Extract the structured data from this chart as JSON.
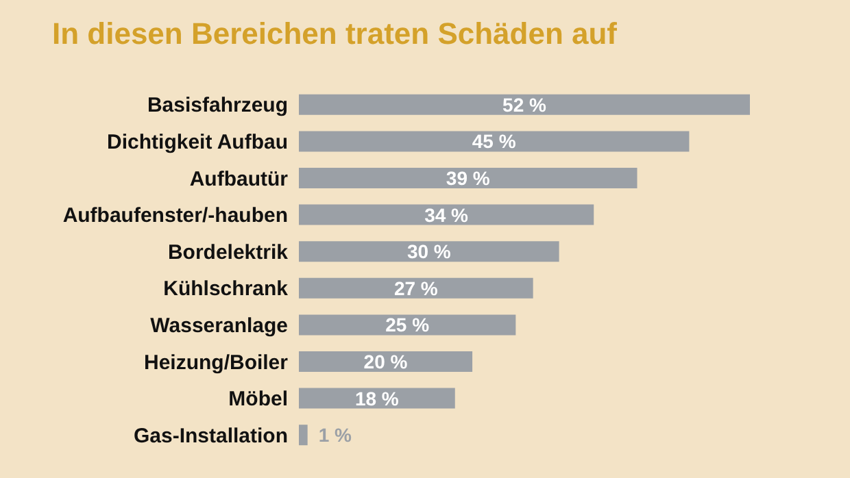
{
  "chart_data": {
    "type": "bar",
    "orientation": "horizontal",
    "title": "In diesen Bereichen traten Schäden auf",
    "categories": [
      "Basisfahrzeug",
      "Dichtigkeit Aufbau",
      "Aufbautür",
      "Aufbaufenster/-hauben",
      "Bordelektrik",
      "Kühlschrank",
      "Wasseranlage",
      "Heizung/Boiler",
      "Möbel",
      "Gas-Installation"
    ],
    "values": [
      52,
      45,
      39,
      34,
      30,
      27,
      25,
      20,
      18,
      1
    ],
    "value_labels": [
      "52 %",
      "45 %",
      "39 %",
      "34 %",
      "30 %",
      "27 %",
      "25 %",
      "20 %",
      "18 %",
      "1 %"
    ],
    "color": "#9ba0a6"
  }
}
